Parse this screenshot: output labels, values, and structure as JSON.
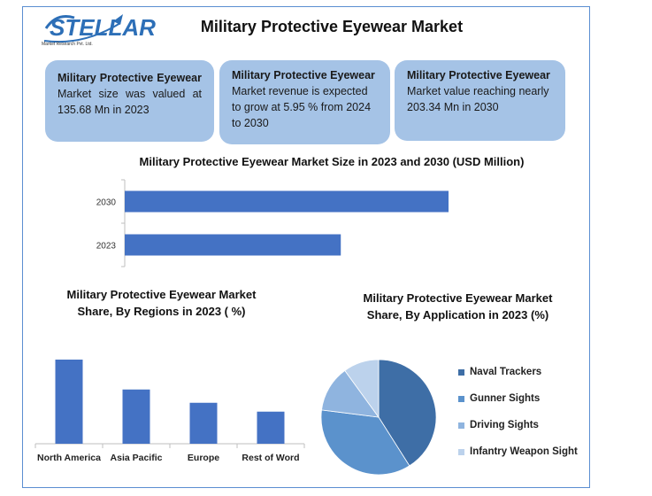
{
  "logo": {
    "name": "STELLAR",
    "subtitle": "Market Research Pvt. Ltd."
  },
  "title": "Military Protective Eyewear Market",
  "cards": [
    {
      "bold": "Military Protective Eyewear",
      "text": " Market size was valued at 135.68 Mn in 2023"
    },
    {
      "bold": "Military Protective Eyewear",
      "text": " Market revenue is expected to grow at 5.95 % from 2024 to 2030"
    },
    {
      "bold": "Military Protective Eyewear",
      "text": " Market value reaching nearly 203.34 Mn in 2030"
    }
  ],
  "colors": {
    "bar": "#4472c4",
    "pie": [
      "#3e6ea6",
      "#5b92cc",
      "#8fb4df",
      "#bcd2ec"
    ]
  },
  "chart_data": [
    {
      "type": "bar",
      "orientation": "horizontal",
      "title": "Military Protective Eyewear Market Size in 2023 and 2030 (USD Million)",
      "categories": [
        "2030",
        "2023"
      ],
      "values": [
        203.34,
        135.68
      ],
      "xlim": [
        0,
        240
      ]
    },
    {
      "type": "bar",
      "title": "Military Protective Eyewear Market Share, By Regions in 2023 ( %)",
      "categories": [
        "North America",
        "Asia Pacific",
        "Europe",
        "Rest of Word"
      ],
      "values": [
        38,
        24.5,
        18.5,
        14.5
      ],
      "ylim": [
        0,
        40
      ]
    },
    {
      "type": "pie",
      "title": "Military Protective Eyewear Market Share, By Application in 2023 (%)",
      "labels": [
        "Naval Trackers",
        "Gunner Sights",
        "Driving Sights",
        "Infantry Weapon Sight"
      ],
      "values": [
        41,
        36,
        13,
        10
      ],
      "legend": "right"
    }
  ]
}
